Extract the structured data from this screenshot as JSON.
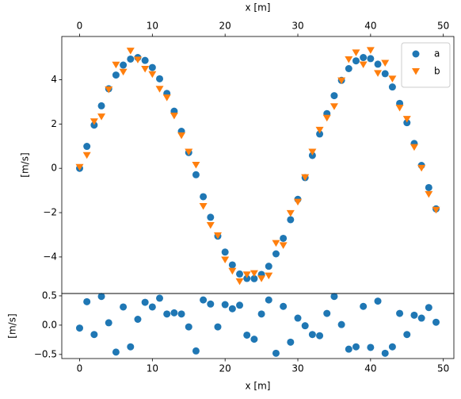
{
  "chart_data": [
    {
      "type": "scatter",
      "xlabel": "x [m]",
      "ylabel": "[m/s]",
      "xtick_side": "top",
      "legend": "upper right",
      "x": [
        0,
        1,
        2,
        3,
        4,
        5,
        6,
        7,
        8,
        9,
        10,
        11,
        12,
        13,
        14,
        15,
        16,
        17,
        18,
        19,
        20,
        21,
        22,
        23,
        24,
        25,
        26,
        27,
        28,
        29,
        30,
        31,
        32,
        33,
        34,
        35,
        36,
        37,
        38,
        39,
        40,
        41,
        42,
        43,
        44,
        45,
        46,
        47,
        48,
        49
      ],
      "series": [
        {
          "name": "a",
          "color": "#1f77b4",
          "marker": "o",
          "values": [
            0,
            0.99,
            1.95,
            2.82,
            3.59,
            4.21,
            4.66,
            4.93,
            5.0,
            4.87,
            4.55,
            4.04,
            3.38,
            2.58,
            1.67,
            0.71,
            -0.29,
            -1.28,
            -2.21,
            -3.06,
            -3.78,
            -4.36,
            -4.77,
            -4.97,
            -4.98,
            -4.79,
            -4.42,
            -3.86,
            -3.16,
            -2.32,
            -1.4,
            -0.42,
            0.58,
            1.55,
            2.47,
            3.28,
            3.97,
            4.5,
            4.85,
            5.0,
            4.95,
            4.7,
            4.27,
            3.67,
            2.93,
            2.06,
            1.12,
            0.13,
            -0.87,
            -1.83
          ]
        },
        {
          "name": "b",
          "color": "#ff7f0e",
          "marker": "v",
          "values": [
            0.05,
            0.59,
            2.11,
            2.33,
            3.55,
            4.67,
            4.35,
            5.3,
            4.9,
            4.48,
            4.24,
            3.58,
            3.19,
            2.37,
            1.48,
            0.74,
            0.15,
            -1.71,
            -2.57,
            -3.03,
            -4.13,
            -4.64,
            -5.11,
            -4.8,
            -4.74,
            -4.98,
            -4.85,
            -3.38,
            -3.48,
            -2.03,
            -1.52,
            -0.41,
            0.74,
            1.73,
            2.27,
            2.79,
            3.96,
            4.91,
            5.22,
            4.68,
            5.33,
            4.29,
            4.75,
            4.04,
            2.73,
            2.22,
            0.95,
            0.01,
            -1.17,
            -1.88
          ]
        }
      ],
      "xlim": [
        -2.45,
        51.45
      ],
      "xticks": [
        0,
        10,
        20,
        30,
        40,
        50
      ],
      "ylim": [
        -5.65,
        5.95
      ],
      "yticks": [
        {
          "value": -4,
          "label": "−4"
        },
        {
          "value": -2,
          "label": "−2"
        },
        0,
        2,
        4
      ]
    },
    {
      "type": "scatter",
      "xlabel": "x [m]",
      "ylabel": "[m/s]",
      "xtick_side": "bottom",
      "x": [
        0,
        1,
        2,
        3,
        4,
        5,
        6,
        7,
        8,
        9,
        10,
        11,
        12,
        13,
        14,
        15,
        16,
        17,
        18,
        19,
        20,
        21,
        22,
        23,
        24,
        25,
        26,
        27,
        28,
        29,
        30,
        31,
        32,
        33,
        34,
        35,
        36,
        37,
        38,
        39,
        40,
        41,
        42,
        43,
        44,
        45,
        46,
        47,
        48,
        49
      ],
      "color": "#1f77b4",
      "marker": "o",
      "values": [
        -0.05,
        0.4,
        -0.16,
        0.49,
        0.04,
        -0.46,
        0.31,
        -0.37,
        0.1,
        0.39,
        0.31,
        0.46,
        0.19,
        0.21,
        0.19,
        -0.03,
        -0.44,
        0.43,
        0.36,
        -0.03,
        0.35,
        0.28,
        0.34,
        -0.17,
        -0.24,
        0.19,
        0.43,
        -0.48,
        0.32,
        -0.29,
        0.12,
        -0.01,
        -0.16,
        -0.18,
        0.2,
        0.49,
        0.01,
        -0.41,
        -0.37,
        0.32,
        -0.38,
        0.41,
        -0.48,
        -0.37,
        0.2,
        -0.16,
        0.17,
        0.12,
        0.3,
        0.05
      ],
      "xlim": [
        -2.45,
        51.45
      ],
      "xticks": [
        0,
        10,
        20,
        30,
        40,
        50
      ],
      "ylim": [
        -0.57,
        0.54
      ],
      "yticks": [
        {
          "value": -0.5,
          "label": "−0.5"
        },
        {
          "value": 0,
          "label": "0.0"
        },
        0.5
      ]
    }
  ]
}
